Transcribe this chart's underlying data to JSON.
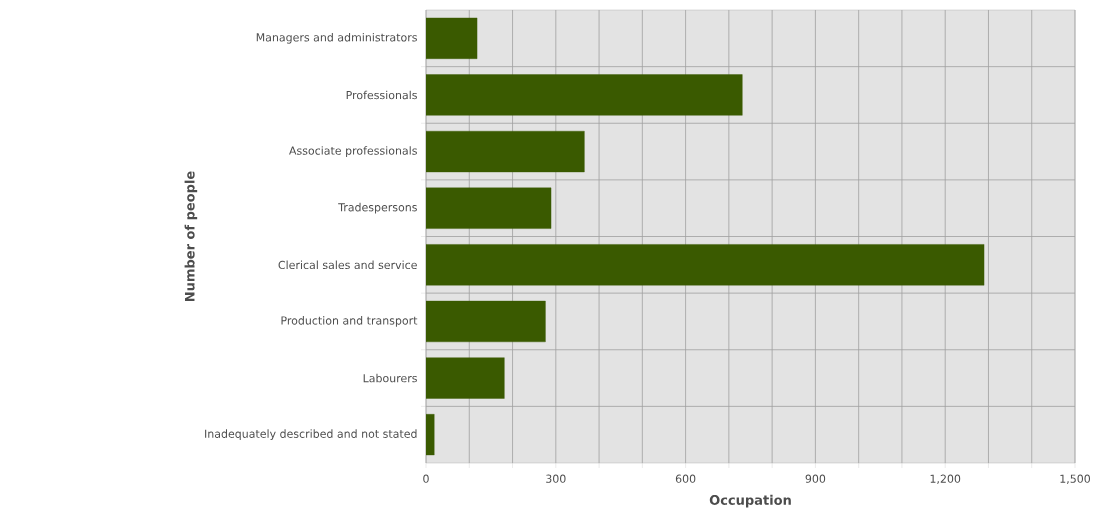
{
  "chart_data": {
    "type": "bar",
    "orientation": "horizontal",
    "xlabel": "Occupation",
    "ylabel": "Number of people",
    "categories": [
      "Managers and administrators",
      "Professionals",
      "Associate professionals",
      "Tradespersons",
      "Clerical sales and service",
      "Production and transport",
      "Labourers",
      "Inadequately described and not stated"
    ],
    "values": [
      118,
      731,
      366,
      289,
      1290,
      276,
      181,
      19
    ],
    "color": "#3a5a00",
    "xlim": [
      0,
      1500
    ],
    "xticks": [
      0,
      {
        "value": 100,
        "label": null
      },
      {
        "value": 200,
        "label": null
      },
      300,
      {
        "value": 400,
        "label": null
      },
      {
        "value": 500,
        "label": null
      },
      600,
      {
        "value": 700,
        "label": null
      },
      {
        "value": 800,
        "label": null
      },
      900,
      {
        "value": 1000,
        "label": null
      },
      {
        "value": 1100,
        "label": null
      },
      {
        "value": 1200,
        "label": "1,200"
      },
      {
        "value": 1300,
        "label": null
      },
      {
        "value": 1400,
        "label": null
      },
      {
        "value": 1500,
        "label": "1,500"
      }
    ],
    "grid": true
  }
}
